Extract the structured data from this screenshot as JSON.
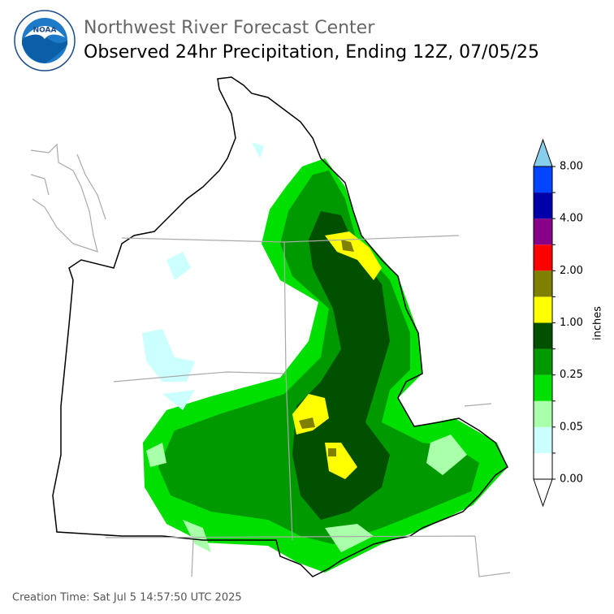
{
  "header": {
    "logo": "NOAA",
    "agency": "Northwest River Forecast Center",
    "title": "Observed 24hr Precipitation, Ending 12Z, 07/05/25"
  },
  "legend": {
    "label": "inches",
    "ticks": [
      "0.00",
      "0.05",
      "0.25",
      "1.00",
      "2.00",
      "4.00",
      "8.00"
    ],
    "colors": [
      "#ffffff",
      "#ccffff",
      "#aaffaa",
      "#00e000",
      "#009900",
      "#005000",
      "#ffff00",
      "#808000",
      "#ff0000",
      "#880088",
      "#0000aa",
      "#0044ff"
    ],
    "over_color": "#87ceeb",
    "under_color": "#ffffff"
  },
  "footer": {
    "created": "Creation Time: Sat Jul 5 14:57:50 UTC 2025"
  }
}
